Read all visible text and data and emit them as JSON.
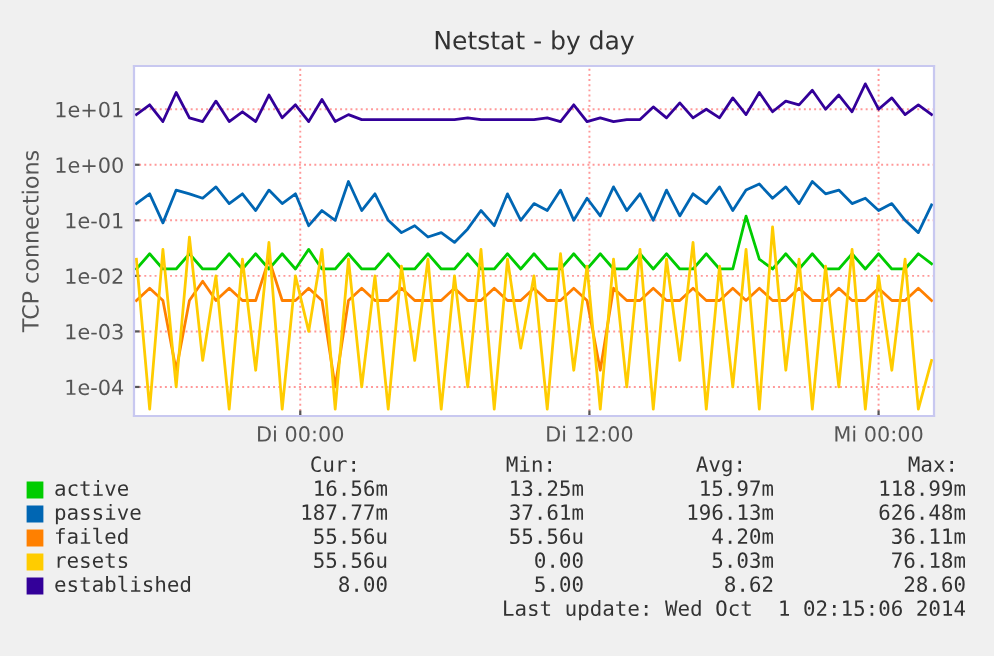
{
  "chart_data": {
    "type": "line",
    "title": "Netstat - by day",
    "ylabel": "TCP connections",
    "log": "y",
    "grid": true,
    "legend": "bottom",
    "line_style": "solid",
    "marker": "none",
    "xlim": [
      "2014-09-29T17:06",
      "2014-10-01T02:18"
    ],
    "xticks": [
      {
        "value": "2014-09-30T00:00",
        "label": "Di 00:00"
      },
      {
        "value": "2014-09-30T12:00",
        "label": "Di 12:00"
      },
      {
        "value": "2014-10-01T00:00",
        "label": "Mi 00:00"
      }
    ],
    "ylim": [
      3e-05,
      60
    ],
    "yticks": [
      {
        "value": 0.0001,
        "label": "1e-04"
      },
      {
        "value": 0.001,
        "label": "1e-03"
      },
      {
        "value": 0.01,
        "label": "1e-02"
      },
      {
        "value": 0.1,
        "label": "1e-01"
      },
      {
        "value": 1,
        "label": "1e+00"
      },
      {
        "value": 10,
        "label": "1e+01"
      }
    ],
    "x": [
      "2014-09-29T17:12",
      "2014-09-29T17:45",
      "2014-09-29T18:18",
      "2014-09-29T18:51",
      "2014-09-29T19:24",
      "2014-09-29T19:57",
      "2014-09-29T20:30",
      "2014-09-29T21:03",
      "2014-09-29T21:36",
      "2014-09-29T22:09",
      "2014-09-29T22:42",
      "2014-09-29T23:15",
      "2014-09-29T23:48",
      "2014-09-30T00:21",
      "2014-09-30T00:54",
      "2014-09-30T01:27",
      "2014-09-30T02:00",
      "2014-09-30T02:33",
      "2014-09-30T03:06",
      "2014-09-30T03:39",
      "2014-09-30T04:12",
      "2014-09-30T04:45",
      "2014-09-30T05:18",
      "2014-09-30T05:51",
      "2014-09-30T06:24",
      "2014-09-30T06:57",
      "2014-09-30T07:30",
      "2014-09-30T08:03",
      "2014-09-30T08:36",
      "2014-09-30T09:09",
      "2014-09-30T09:42",
      "2014-09-30T10:15",
      "2014-09-30T10:48",
      "2014-09-30T11:21",
      "2014-09-30T11:54",
      "2014-09-30T12:27",
      "2014-09-30T13:00",
      "2014-09-30T13:33",
      "2014-09-30T14:06",
      "2014-09-30T14:39",
      "2014-09-30T15:12",
      "2014-09-30T15:45",
      "2014-09-30T16:18",
      "2014-09-30T16:51",
      "2014-09-30T17:24",
      "2014-09-30T17:57",
      "2014-09-30T18:30",
      "2014-09-30T19:03",
      "2014-09-30T19:36",
      "2014-09-30T20:09",
      "2014-09-30T20:42",
      "2014-09-30T21:15",
      "2014-09-30T21:48",
      "2014-09-30T22:21",
      "2014-09-30T22:54",
      "2014-09-30T23:27",
      "2014-10-01T00:00",
      "2014-10-01T00:33",
      "2014-10-01T01:06",
      "2014-10-01T01:39",
      "2014-10-01T02:12"
    ],
    "series": [
      {
        "name": "active",
        "color": "#00cc00",
        "values": [
          0.0133,
          0.025,
          0.0133,
          0.0133,
          0.025,
          0.0133,
          0.0133,
          0.025,
          0.0133,
          0.025,
          0.0133,
          0.025,
          0.0133,
          0.03,
          0.0133,
          0.0133,
          0.025,
          0.0133,
          0.0133,
          0.025,
          0.0133,
          0.0133,
          0.025,
          0.0133,
          0.0133,
          0.025,
          0.0133,
          0.0133,
          0.025,
          0.0133,
          0.025,
          0.0133,
          0.0133,
          0.025,
          0.0133,
          0.025,
          0.0133,
          0.0133,
          0.025,
          0.0133,
          0.025,
          0.0133,
          0.0133,
          0.025,
          0.0133,
          0.0133,
          0.119,
          0.02,
          0.0133,
          0.025,
          0.0133,
          0.025,
          0.0133,
          0.0133,
          0.025,
          0.0133,
          0.025,
          0.0133,
          0.0133,
          0.025,
          0.0165
        ]
      },
      {
        "name": "passive",
        "color": "#0066b3",
        "values": [
          0.2,
          0.3,
          0.09,
          0.35,
          0.3,
          0.25,
          0.4,
          0.2,
          0.3,
          0.15,
          0.35,
          0.2,
          0.3,
          0.08,
          0.15,
          0.1,
          0.5,
          0.15,
          0.3,
          0.1,
          0.06,
          0.08,
          0.05,
          0.06,
          0.04,
          0.07,
          0.15,
          0.08,
          0.3,
          0.1,
          0.2,
          0.15,
          0.35,
          0.1,
          0.25,
          0.12,
          0.4,
          0.15,
          0.3,
          0.1,
          0.35,
          0.12,
          0.3,
          0.2,
          0.4,
          0.15,
          0.35,
          0.45,
          0.25,
          0.4,
          0.2,
          0.5,
          0.3,
          0.35,
          0.2,
          0.25,
          0.15,
          0.2,
          0.1,
          0.06,
          0.19
        ]
      },
      {
        "name": "failed",
        "color": "#ff8000",
        "values": [
          0.0036,
          0.006,
          0.0036,
          0.0002,
          0.0036,
          0.008,
          0.0036,
          0.006,
          0.0036,
          0.0036,
          0.02,
          0.0036,
          0.0036,
          0.006,
          0.0036,
          0.0001,
          0.0036,
          0.006,
          0.0036,
          0.0036,
          0.006,
          0.0036,
          0.0036,
          0.0036,
          0.006,
          0.0036,
          0.0036,
          0.006,
          0.0036,
          0.0036,
          0.006,
          0.0036,
          0.0036,
          0.006,
          0.0036,
          0.0002,
          0.006,
          0.0036,
          0.0036,
          0.006,
          0.0036,
          0.0036,
          0.006,
          0.0036,
          0.0036,
          0.006,
          0.0036,
          0.006,
          0.0036,
          0.0036,
          0.006,
          0.0036,
          0.0036,
          0.006,
          0.0036,
          0.0036,
          0.006,
          0.0036,
          0.0036,
          0.006,
          0.0036
        ]
      },
      {
        "name": "resets",
        "color": "#ffcc00",
        "values": [
          0.02,
          4e-05,
          0.03,
          0.0001,
          0.05,
          0.0003,
          0.01,
          4e-05,
          0.02,
          0.0002,
          0.04,
          4e-05,
          0.01,
          0.001,
          0.03,
          4e-05,
          0.02,
          0.0001,
          0.01,
          4e-05,
          0.015,
          0.0003,
          0.02,
          4e-05,
          0.01,
          0.0001,
          0.03,
          4e-05,
          0.02,
          0.0005,
          0.01,
          4e-05,
          0.025,
          0.0002,
          0.015,
          4e-05,
          0.02,
          0.0001,
          0.03,
          4e-05,
          0.02,
          0.0003,
          0.04,
          4e-05,
          0.015,
          0.0001,
          0.03,
          4e-05,
          0.076,
          0.0002,
          0.02,
          4e-05,
          0.015,
          0.0001,
          0.03,
          4e-05,
          0.01,
          0.0002,
          0.02,
          4e-05,
          0.0003
        ]
      },
      {
        "name": "established",
        "color": "#330099",
        "values": [
          8,
          12,
          6,
          20,
          7,
          6,
          14,
          6,
          9,
          6,
          18,
          7,
          12,
          6,
          15,
          6,
          8,
          6.5,
          6.5,
          6.5,
          6.5,
          6.5,
          6.5,
          6.5,
          6.5,
          7,
          6.5,
          6.5,
          6.5,
          6.5,
          6.5,
          7,
          6,
          12,
          6,
          7,
          6,
          6.5,
          6.5,
          11,
          7,
          13,
          7,
          10,
          7,
          16,
          8,
          20,
          9,
          14,
          12,
          22,
          10,
          18,
          9,
          28.6,
          10,
          16,
          8,
          12,
          8
        ]
      }
    ],
    "annotations": [
      "Cur:",
      "Min:",
      "Avg:",
      "Max:",
      "16.56m",
      "13.25m",
      "15.97m",
      "118.99m",
      "187.77m",
      "37.61m",
      "196.13m",
      "626.48m",
      "55.56u",
      "55.56u",
      "4.20m",
      "36.11m",
      "55.56u",
      "0.00",
      "5.03m",
      "76.18m",
      "8.00",
      "5.00",
      "8.62",
      "28.60",
      "Last update: Wed Oct  1 02:15:06 2014"
    ]
  }
}
